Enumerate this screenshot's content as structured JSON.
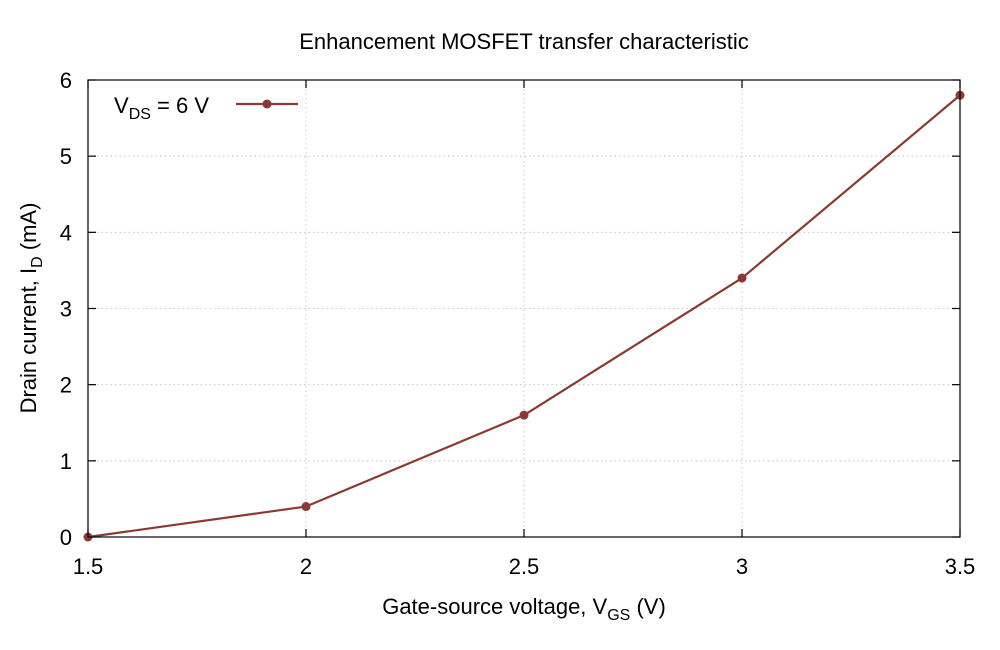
{
  "chart_data": {
    "type": "line",
    "title": "Enhancement MOSFET transfer characteristic",
    "xlabel": {
      "main": "Gate-source voltage, V",
      "sub": "GS",
      "tail": " (V)"
    },
    "ylabel": {
      "main": "Drain current, I",
      "sub": "D",
      "tail": " (mA)"
    },
    "xlim": [
      1.5,
      3.5
    ],
    "ylim": [
      0,
      6
    ],
    "xticks": [
      1.5,
      2,
      2.5,
      3,
      3.5
    ],
    "xtick_labels": [
      "1.5",
      "2",
      "2.5",
      "3",
      "3.5"
    ],
    "yticks": [
      0,
      1,
      2,
      3,
      4,
      5,
      6
    ],
    "ytick_labels": [
      "0",
      "1",
      "2",
      "3",
      "4",
      "5",
      "6"
    ],
    "grid": true,
    "legend_position": "top-left",
    "series": [
      {
        "name": {
          "main": "V",
          "sub": "DS",
          "tail": " = 6 V"
        },
        "color": "#8b3a32",
        "x": [
          1.5,
          2.0,
          2.5,
          3.0,
          3.5
        ],
        "y": [
          0.0,
          0.4,
          1.6,
          3.4,
          5.8
        ]
      }
    ]
  }
}
